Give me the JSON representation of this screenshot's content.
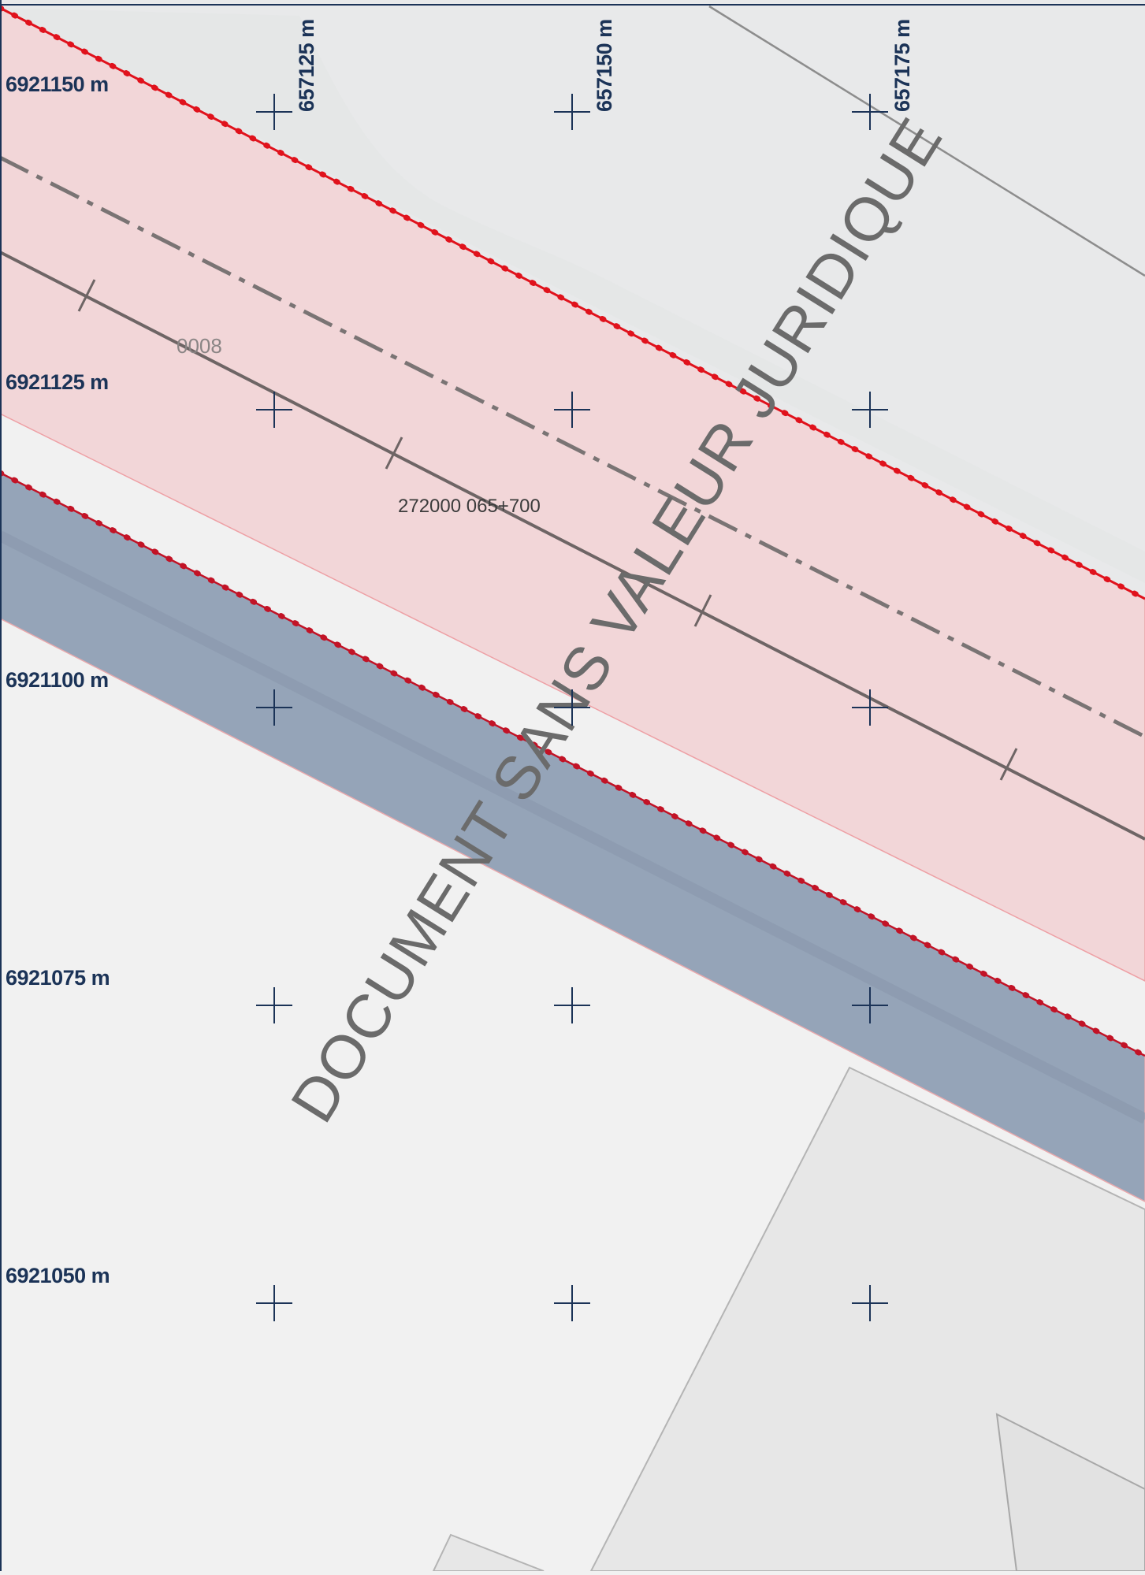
{
  "map": {
    "y_labels": [
      "6921150 m",
      "6921125 m",
      "6921100 m",
      "6921075 m",
      "6921050 m"
    ],
    "x_labels": [
      "657125 m",
      "657150 m",
      "657175 m"
    ],
    "road_number": "0008",
    "pr_label": "272000 065+700",
    "watermark": "DOCUMENT SANS VALEUR JURIDIQUE",
    "colors": {
      "background": "#f1f1f1",
      "upper_terrain": "#e8e9ea",
      "red_zone_fill": "#f2d6d8",
      "red_boundary": "#e0121c",
      "blue_band_fill": "#95a4b8",
      "overlap_fill": "#9c98a6",
      "grid_text": "#1b3357",
      "road_line": "#6e6565",
      "watermark": "#6b6b6b"
    }
  }
}
